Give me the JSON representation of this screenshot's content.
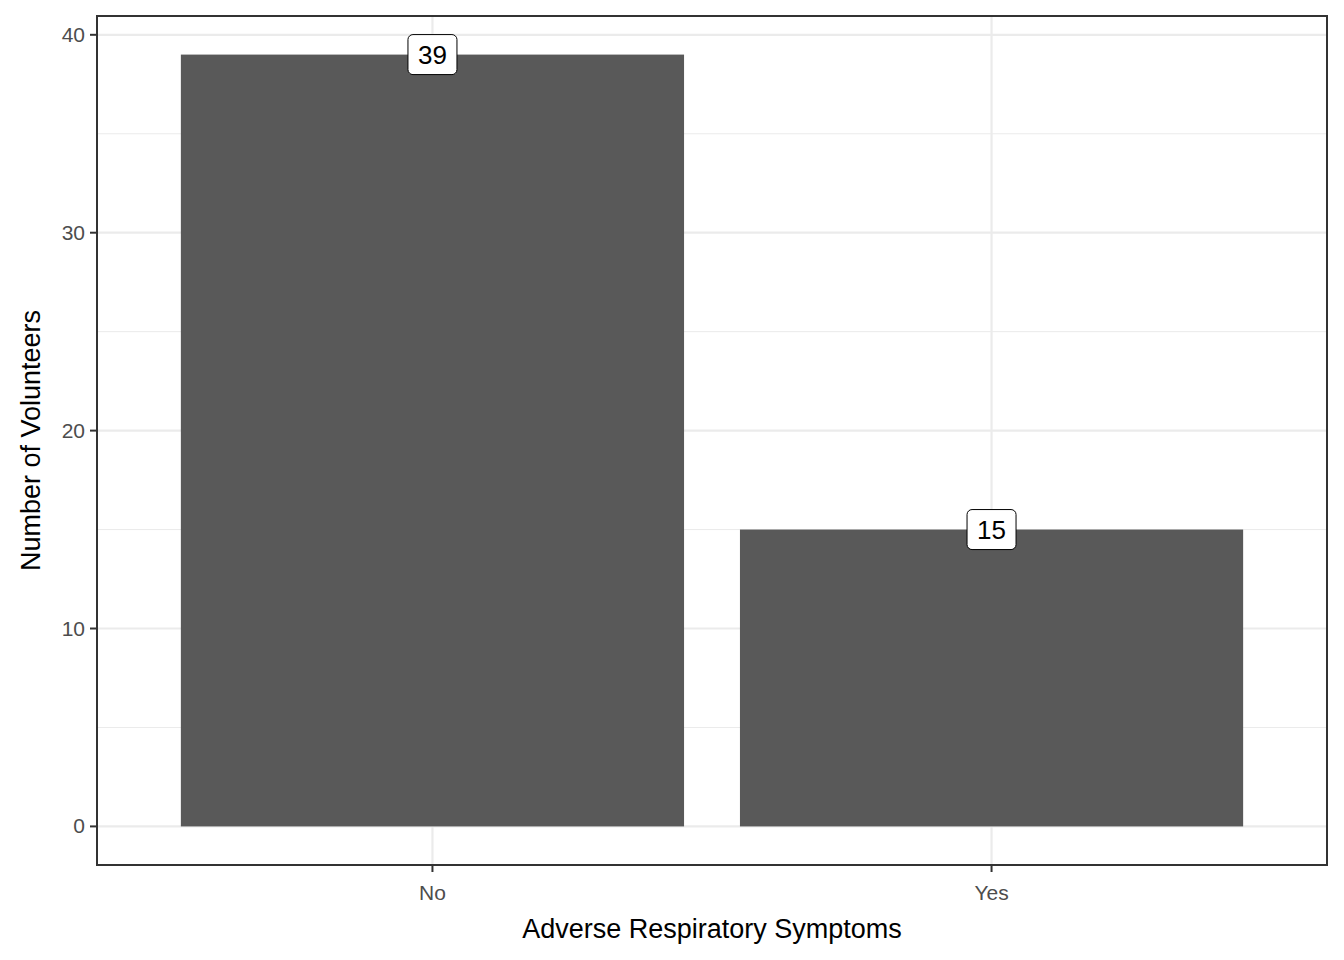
{
  "chart_data": {
    "type": "bar",
    "x_label": "Adverse Respiratory Symptoms",
    "y_label": "Number of Volunteers",
    "categories": [
      "No",
      "Yes"
    ],
    "values": [
      39,
      15
    ],
    "color": "#595959",
    "ylim": [
      -1.95,
      40.95
    ],
    "yticks": [
      0,
      10,
      20,
      30,
      40
    ],
    "grid": true,
    "data_labels": true
  }
}
